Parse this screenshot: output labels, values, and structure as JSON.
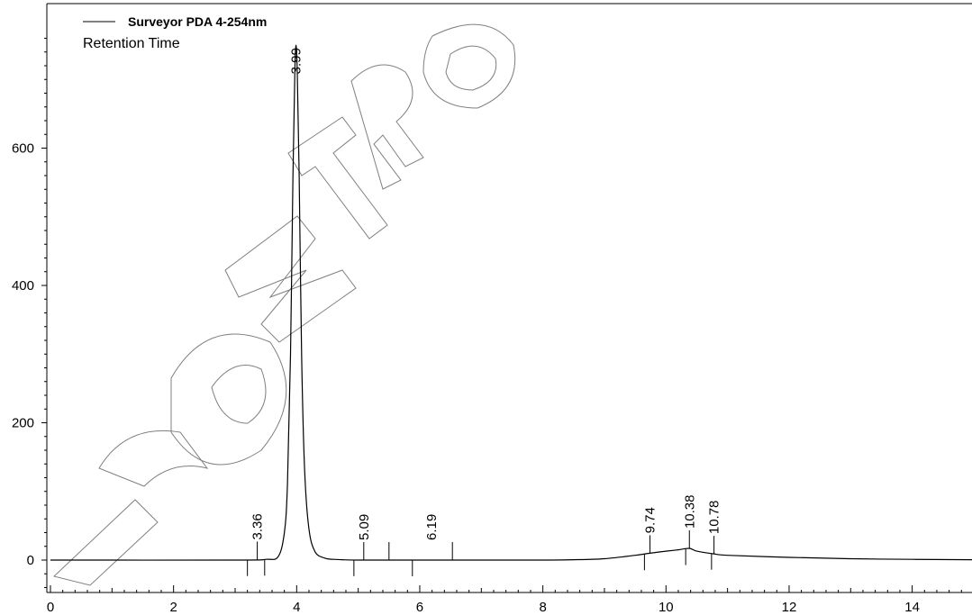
{
  "chart_data": {
    "type": "line",
    "legend": {
      "series_name": "Surveyor PDA 4-254nm",
      "subtitle": "Retention Time",
      "placement": "top-left"
    },
    "xlim": [
      0,
      15
    ],
    "ylim": [
      -50,
      780
    ],
    "x_ticks": [
      0,
      2,
      4,
      6,
      8,
      10,
      12,
      14
    ],
    "y_ticks": [
      0,
      200,
      400,
      600
    ],
    "grid": false,
    "series": [
      {
        "name": "Surveyor PDA 4-254nm",
        "x": [
          0,
          3.0,
          3.5,
          3.7,
          3.8,
          3.85,
          3.9,
          3.94,
          3.97,
          3.99,
          4.01,
          4.04,
          4.08,
          4.13,
          4.2,
          4.3,
          4.45,
          4.6,
          5.0,
          6.0,
          7.0,
          8.0,
          8.5,
          9.0,
          9.5,
          9.74,
          10.0,
          10.2,
          10.38,
          10.5,
          10.78,
          11.0,
          12.0,
          13.0,
          14.0,
          15.0
        ],
        "y": [
          0,
          0,
          1,
          5,
          40,
          110,
          300,
          560,
          710,
          750,
          710,
          560,
          300,
          130,
          45,
          12,
          3,
          1,
          0,
          0,
          0,
          0,
          0.5,
          2,
          7,
          10,
          13,
          15,
          17,
          13,
          9,
          7,
          4,
          2,
          1,
          0.5
        ],
        "color": "#000000"
      }
    ],
    "peak_labels": [
      {
        "label": "3.36",
        "rt": 3.36,
        "side": "above"
      },
      {
        "label": "3.99",
        "rt": 3.99,
        "side": "below"
      },
      {
        "label": "5.09",
        "rt": 5.09,
        "side": "above"
      },
      {
        "label": "6.19",
        "rt": 6.19,
        "side": "above"
      },
      {
        "label": "9.74",
        "rt": 9.74,
        "side": "above"
      },
      {
        "label": "10.38",
        "rt": 10.38,
        "side": "above"
      },
      {
        "label": "10.78",
        "rt": 10.78,
        "side": "above"
      }
    ],
    "integration_marks": [
      {
        "x": 3.36,
        "side": "above"
      },
      {
        "x": 5.09,
        "side": "above"
      },
      {
        "x": 5.5,
        "side": "above"
      },
      {
        "x": 6.53,
        "side": "above"
      },
      {
        "x": 9.74,
        "side": "above"
      },
      {
        "x": 10.38,
        "side": "above"
      },
      {
        "x": 10.78,
        "side": "above"
      },
      {
        "x": 3.2,
        "side": "below"
      },
      {
        "x": 3.48,
        "side": "below"
      },
      {
        "x": 4.93,
        "side": "below"
      },
      {
        "x": 5.88,
        "side": "below"
      },
      {
        "x": 9.65,
        "side": "below"
      },
      {
        "x": 10.32,
        "side": "below"
      },
      {
        "x": 10.74,
        "side": "below"
      }
    ],
    "watermark": "UNCONTROLLED"
  }
}
